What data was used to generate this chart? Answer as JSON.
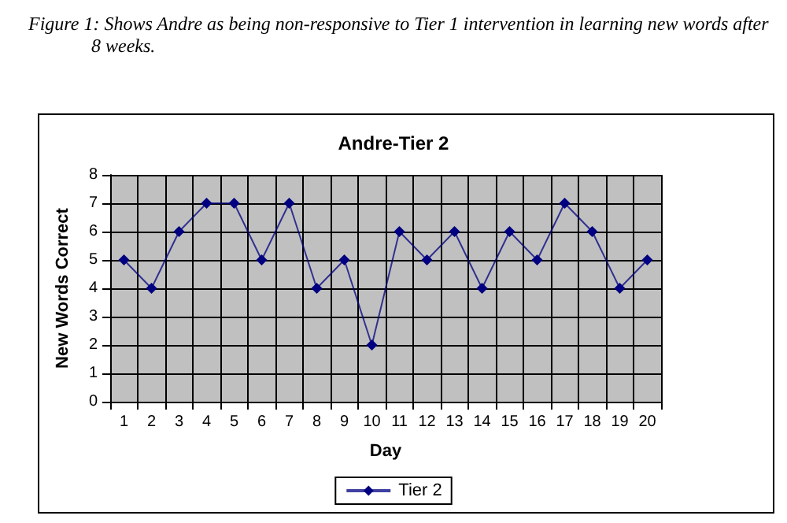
{
  "chart_data": {
    "type": "line",
    "title": "Andre-Tier 2",
    "xlabel": "Day",
    "ylabel": "New Words Correct",
    "annotations": [
      "Figure 1: Shows Andre as being non-responsive to Tier 1 intervention in learning new words after 8 weeks."
    ],
    "categories": [
      "1",
      "2",
      "3",
      "4",
      "5",
      "6",
      "7",
      "8",
      "9",
      "10",
      "11",
      "12",
      "13",
      "14",
      "15",
      "16",
      "17",
      "18",
      "19",
      "20"
    ],
    "series": [
      {
        "name": "Tier 2",
        "color": "#000080",
        "values": [
          5,
          4,
          6,
          7,
          7,
          5,
          7,
          4,
          5,
          2,
          6,
          5,
          6,
          4,
          6,
          5,
          7,
          6,
          4,
          5
        ]
      }
    ],
    "ylim": [
      0,
      8
    ],
    "yticks": [
      0,
      1,
      2,
      3,
      4,
      5,
      6,
      7,
      8
    ],
    "grid": true,
    "legend": "bottom",
    "marker": "diamond",
    "line_style": "solid"
  }
}
